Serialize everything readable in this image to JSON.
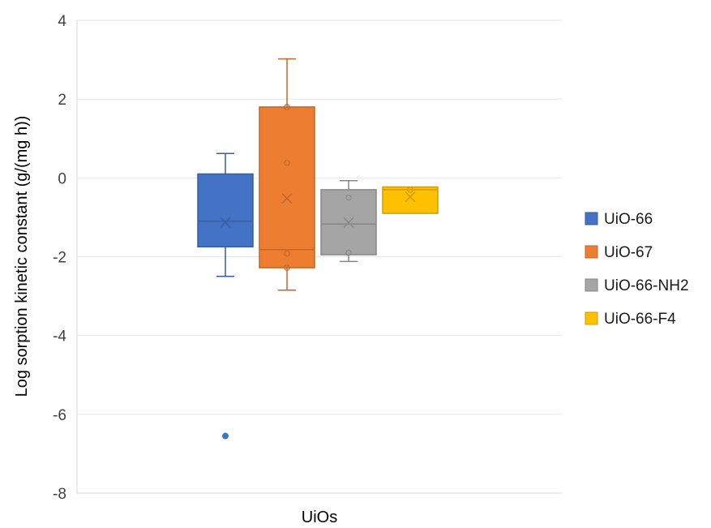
{
  "chart_data": {
    "type": "box",
    "title": "",
    "xlabel": "UiOs",
    "ylabel": "Log sorption kinetic constant (g/(mg h))",
    "ylim": [
      -8,
      4
    ],
    "yticks": [
      4,
      2,
      0,
      -2,
      -4,
      -6,
      -8
    ],
    "grid": true,
    "legend_position": "right",
    "series": [
      {
        "name": "UiO-66",
        "color": "#4472C4",
        "whisker_low": -2.5,
        "q1": -1.75,
        "median": -1.1,
        "q3": 0.1,
        "whisker_high": 0.62,
        "mean": -1.13,
        "inner_points": [],
        "outliers": [
          -6.55
        ]
      },
      {
        "name": "UiO-67",
        "color": "#ED7D31",
        "whisker_low": -2.85,
        "q1": -2.28,
        "median": -1.82,
        "q3": 1.8,
        "whisker_high": 3.02,
        "mean": -0.52,
        "inner_points": [
          1.8,
          0.38,
          -1.92,
          -2.28
        ],
        "outliers": []
      },
      {
        "name": "UiO-66-NH2",
        "color": "#A5A5A5",
        "whisker_low": -2.12,
        "q1": -1.95,
        "median": -1.17,
        "q3": -0.3,
        "whisker_high": -0.07,
        "mean": -1.13,
        "inner_points": [
          -0.5,
          -1.9
        ],
        "outliers": []
      },
      {
        "name": "UiO-66-F4",
        "color": "#FFC000",
        "whisker_low": -0.9,
        "q1": -0.9,
        "median": -0.3,
        "q3": -0.23,
        "whisker_high": -0.23,
        "mean": -0.48,
        "inner_points": [
          -0.3
        ],
        "outliers": []
      }
    ]
  }
}
